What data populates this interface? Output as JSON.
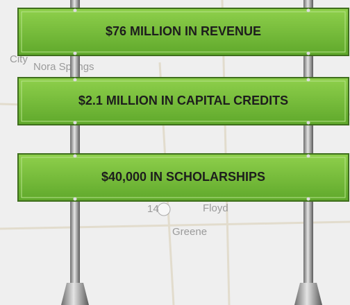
{
  "map_labels": [
    "City",
    "Nora Springs",
    "Floyd",
    "14",
    "Greene"
  ],
  "signs": [
    "$76 MILLION IN REVENUE",
    "$2.1 MILLION IN CAPITAL CREDITS",
    "$40,000 IN SCHOLARSHIPS"
  ]
}
